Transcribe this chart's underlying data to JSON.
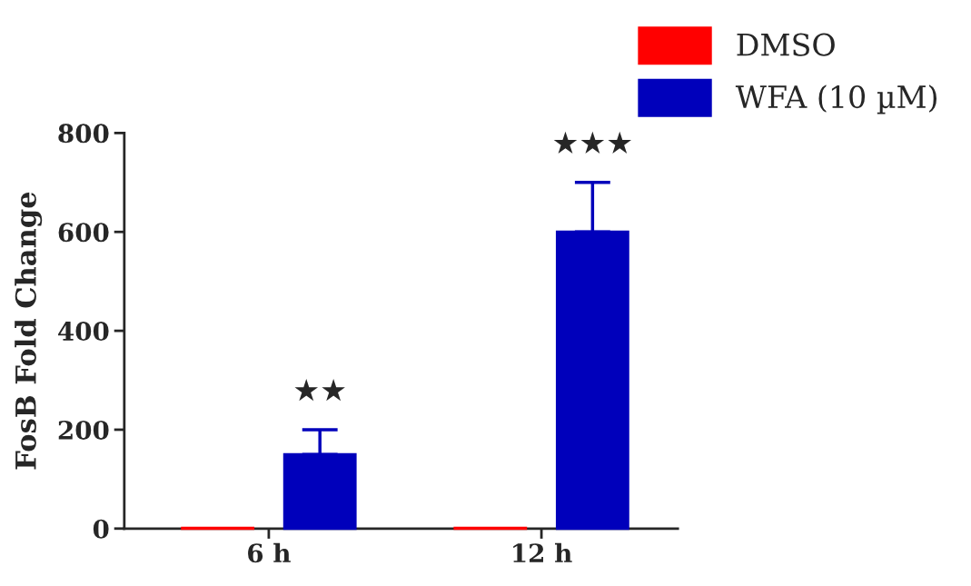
{
  "chart_data": {
    "type": "bar",
    "ylabel": "FosB Fold Change",
    "categories": [
      "6 h",
      "12 h"
    ],
    "series": [
      {
        "name": "DMSO",
        "color": "#ff0000",
        "values": [
          1,
          1
        ]
      },
      {
        "name": "WFA (10 µM)",
        "color": "#0000bb",
        "values": [
          150,
          600
        ],
        "errors": [
          [
            150,
            200
          ],
          [
            600,
            700
          ]
        ]
      }
    ],
    "ylim": [
      0,
      800
    ],
    "yticks": [
      0,
      200,
      400,
      600,
      800
    ],
    "grid": false,
    "legend": "top right",
    "annotations": [
      "★★",
      "★★★"
    ]
  }
}
